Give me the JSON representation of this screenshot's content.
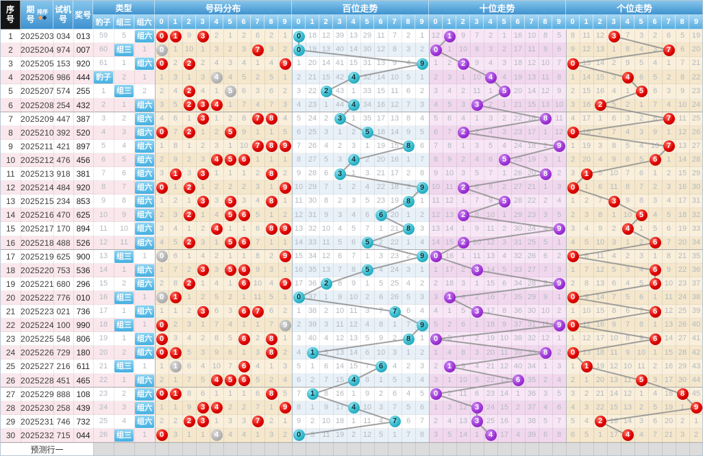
{
  "header": {
    "index": "序号",
    "period": "期号",
    "sort": "排序",
    "test_no": "试机号",
    "prize_no": "奖号",
    "type": "类型",
    "type_cols": [
      "豹子",
      "组三",
      "组六"
    ],
    "sections": [
      "号码分布",
      "百位走势",
      "十位走势",
      "个位走势"
    ],
    "digits": [
      "0",
      "1",
      "2",
      "3",
      "4",
      "5",
      "6",
      "7",
      "8",
      "9"
    ]
  },
  "footer": {
    "prediction_label": "预测行一"
  },
  "colors": {
    "header_bg": "#4f9fd6",
    "red_ball": "#dd0000",
    "gray_ball": "#b2b2b2",
    "hundreds_ball": "#2cb4c8",
    "tens_ball": "#9a2fd4",
    "units_ball": "#dd0000",
    "type_label_bg": "#45b0e1",
    "trend_line": "#8f8f8f",
    "miss_text": "#b2b8bf"
  },
  "rows": [
    {
      "seq": 1,
      "period": "2025203",
      "test": "034",
      "win": "013",
      "type": "组六"
    },
    {
      "seq": 2,
      "period": "2025204",
      "test": "974",
      "win": "007",
      "type": "组三"
    },
    {
      "seq": 3,
      "period": "2025205",
      "test": "153",
      "win": "920",
      "type": "组六"
    },
    {
      "seq": 4,
      "period": "2025206",
      "test": "986",
      "win": "444",
      "type": "豹子"
    },
    {
      "seq": 5,
      "period": "2025207",
      "test": "574",
      "win": "255",
      "type": "组三"
    },
    {
      "seq": 6,
      "period": "2025208",
      "test": "254",
      "win": "432",
      "type": "组六"
    },
    {
      "seq": 7,
      "period": "2025209",
      "test": "447",
      "win": "387",
      "type": "组六"
    },
    {
      "seq": 8,
      "period": "2025210",
      "test": "392",
      "win": "520",
      "type": "组六"
    },
    {
      "seq": 9,
      "period": "2025211",
      "test": "421",
      "win": "897",
      "type": "组六"
    },
    {
      "seq": 10,
      "period": "2025212",
      "test": "476",
      "win": "456",
      "type": "组六"
    },
    {
      "seq": 11,
      "period": "2025213",
      "test": "918",
      "win": "381",
      "type": "组六"
    },
    {
      "seq": 12,
      "period": "2025214",
      "test": "484",
      "win": "920",
      "type": "组六"
    },
    {
      "seq": 13,
      "period": "2025215",
      "test": "234",
      "win": "853",
      "type": "组六"
    },
    {
      "seq": 14,
      "period": "2025216",
      "test": "470",
      "win": "625",
      "type": "组六"
    },
    {
      "seq": 15,
      "period": "2025217",
      "test": "170",
      "win": "894",
      "type": "组六"
    },
    {
      "seq": 16,
      "period": "2025218",
      "test": "488",
      "win": "526",
      "type": "组六"
    },
    {
      "seq": 17,
      "period": "2025219",
      "test": "625",
      "win": "900",
      "type": "组三"
    },
    {
      "seq": 18,
      "period": "2025220",
      "test": "753",
      "win": "536",
      "type": "组六"
    },
    {
      "seq": 19,
      "period": "2025221",
      "test": "680",
      "win": "296",
      "type": "组六"
    },
    {
      "seq": 20,
      "period": "2025222",
      "test": "776",
      "win": "010",
      "type": "组三"
    },
    {
      "seq": 21,
      "period": "2025223",
      "test": "021",
      "win": "736",
      "type": "组六"
    },
    {
      "seq": 22,
      "period": "2025224",
      "test": "100",
      "win": "990",
      "type": "组三"
    },
    {
      "seq": 23,
      "period": "2025225",
      "test": "548",
      "win": "806",
      "type": "组六"
    },
    {
      "seq": 24,
      "period": "2025226",
      "test": "729",
      "win": "180",
      "type": "组六"
    },
    {
      "seq": 25,
      "period": "2025227",
      "test": "216",
      "win": "611",
      "type": "组三"
    },
    {
      "seq": 26,
      "period": "2025228",
      "test": "451",
      "win": "465",
      "type": "组六"
    },
    {
      "seq": 27,
      "period": "2025229",
      "test": "888",
      "win": "108",
      "type": "组六"
    },
    {
      "seq": 28,
      "period": "2025230",
      "test": "258",
      "win": "439",
      "type": "组六"
    },
    {
      "seq": 29,
      "period": "2025231",
      "test": "746",
      "win": "732",
      "type": "组六"
    },
    {
      "seq": 30,
      "period": "2025232",
      "test": "715",
      "win": "044",
      "type": "组三"
    }
  ],
  "row1_miss": {
    "type": [
      59,
      5,
      null
    ],
    "distribution": [
      null,
      null,
      9,
      null,
      2,
      1,
      2,
      6,
      2,
      1
    ],
    "hundreds": [
      null,
      18,
      12,
      39,
      13,
      29,
      11,
      7,
      2,
      1
    ],
    "tens": [
      12,
      null,
      9,
      7,
      2,
      1,
      16,
      10,
      8,
      5
    ],
    "units": [
      8,
      11,
      12,
      null,
      7,
      3,
      2,
      6,
      5,
      19
    ]
  }
}
